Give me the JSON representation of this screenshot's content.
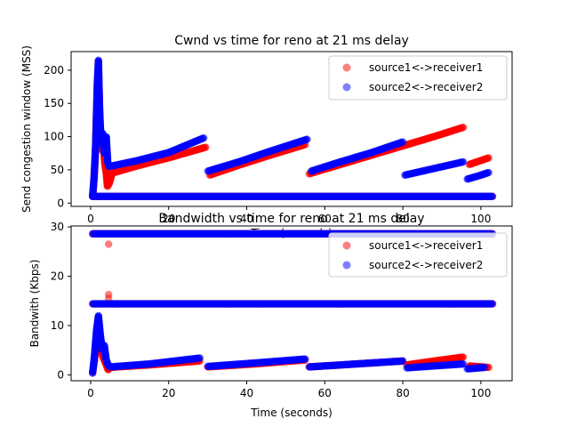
{
  "figure": {
    "series_colors": {
      "source1": "#ff0000",
      "source2": "#0000ff"
    }
  },
  "chart_data": [
    {
      "type": "scatter",
      "title": "Cwnd vs time for reno at 21 ms delay",
      "xlabel": "Time (seconds)",
      "ylabel": "Send congestion window (MSS)",
      "xlim": [
        -5,
        108
      ],
      "ylim": [
        -5,
        228
      ],
      "xticks": [
        0,
        20,
        40,
        60,
        80,
        100
      ],
      "yticks": [
        0,
        50,
        100,
        150,
        200
      ],
      "legend_location": "upper right",
      "series": [
        {
          "name": "source1<->receiver1",
          "color": "#ff0000",
          "segments": [
            [
              [
                0.5,
                10
              ],
              [
                0.8,
                30
              ],
              [
                1.2,
                70
              ],
              [
                1.6,
                150
              ],
              [
                2.0,
                205
              ],
              [
                2.4,
                120
              ],
              [
                2.8,
                80
              ],
              [
                3.2,
                95
              ],
              [
                3.6,
                60
              ],
              [
                4.0,
                45
              ],
              [
                4.3,
                25
              ],
              [
                4.8,
                30
              ],
              [
                5.5,
                45
              ]
            ],
            [
              [
                5.5,
                45
              ],
              [
                12,
                56
              ],
              [
                20,
                68
              ],
              [
                29.5,
                84
              ]
            ],
            [
              [
                30.5,
                42
              ],
              [
                38,
                57
              ],
              [
                46,
                72
              ],
              [
                55,
                88
              ]
            ],
            [
              [
                56,
                44
              ],
              [
                64,
                58
              ],
              [
                72,
                72
              ],
              [
                80,
                86
              ],
              [
                88,
                100
              ],
              [
                95.5,
                114
              ]
            ],
            [
              [
                97,
                58
              ],
              [
                100,
                64
              ],
              [
                102,
                68
              ]
            ],
            [
              [
                0.5,
                10
              ],
              [
                103,
                10
              ]
            ]
          ]
        },
        {
          "name": "source2<->receiver2",
          "color": "#0000ff",
          "segments": [
            [
              [
                0.5,
                10
              ],
              [
                0.9,
                40
              ],
              [
                1.3,
                90
              ],
              [
                1.7,
                180
              ],
              [
                2.0,
                215
              ],
              [
                2.3,
                140
              ],
              [
                2.7,
                90
              ],
              [
                3.1,
                105
              ],
              [
                3.5,
                75
              ],
              [
                4.0,
                100
              ],
              [
                4.4,
                60
              ],
              [
                4.8,
                55
              ]
            ],
            [
              [
                4.8,
                55
              ],
              [
                12,
                64
              ],
              [
                20,
                76
              ],
              [
                29,
                98
              ]
            ],
            [
              [
                30,
                48
              ],
              [
                38,
                62
              ],
              [
                46,
                78
              ],
              [
                55.5,
                96
              ]
            ],
            [
              [
                56.5,
                48
              ],
              [
                64,
                62
              ],
              [
                72,
                76
              ],
              [
                80,
                92
              ]
            ],
            [
              [
                80.5,
                42
              ],
              [
                88,
                52
              ],
              [
                95.5,
                62
              ]
            ],
            [
              [
                96.5,
                36
              ],
              [
                100,
                42
              ],
              [
                102,
                46
              ]
            ],
            [
              [
                0.5,
                10
              ],
              [
                103,
                10
              ]
            ]
          ]
        }
      ]
    },
    {
      "type": "scatter",
      "title": "Bandwidth vs time for reno at 21 ms delay",
      "xlabel": "Time (seconds)",
      "ylabel": "Bandwith (Kbps)",
      "xlim": [
        -5,
        108
      ],
      "ylim": [
        -1.2,
        30.2
      ],
      "xticks": [
        0,
        20,
        40,
        60,
        80,
        100
      ],
      "yticks": [
        0,
        10,
        20,
        30
      ],
      "legend_location": "upper right",
      "series": [
        {
          "name": "source1<->receiver1",
          "color": "#ff0000",
          "segments": [
            [
              [
                0.5,
                0.5
              ],
              [
                1.0,
                3
              ],
              [
                1.5,
                8
              ],
              [
                2.0,
                11
              ],
              [
                2.5,
                6
              ],
              [
                3.0,
                4
              ],
              [
                3.5,
                3
              ],
              [
                4.0,
                2
              ],
              [
                4.5,
                1
              ],
              [
                5.0,
                1.5
              ]
            ],
            [
              [
                5.0,
                1.5
              ],
              [
                15,
                2.0
              ],
              [
                28,
                2.8
              ]
            ],
            [
              [
                30,
                1.6
              ],
              [
                42,
                2.2
              ],
              [
                55,
                3.0
              ]
            ],
            [
              [
                56,
                1.6
              ],
              [
                68,
                2.2
              ],
              [
                80,
                2.8
              ]
            ],
            [
              [
                81,
                2.0
              ],
              [
                88,
                2.8
              ],
              [
                95.5,
                3.6
              ]
            ],
            [
              [
                97,
                1.8
              ],
              [
                102,
                1.5
              ]
            ],
            [
              [
                0.5,
                14.4
              ],
              [
                103,
                14.4
              ]
            ],
            [
              [
                0.5,
                28.6
              ],
              [
                103,
                28.6
              ]
            ]
          ],
          "outliers": [
            [
              4.6,
              26.5
            ],
            [
              4.6,
              16.3
            ],
            [
              4.6,
              15.5
            ]
          ]
        },
        {
          "name": "source2<->receiver2",
          "color": "#0000ff",
          "segments": [
            [
              [
                0.5,
                0.3
              ],
              [
                1.0,
                4
              ],
              [
                1.5,
                9
              ],
              [
                2.0,
                12
              ],
              [
                2.5,
                8
              ],
              [
                3.0,
                5
              ],
              [
                3.5,
                6
              ],
              [
                4.0,
                3
              ],
              [
                4.5,
                2
              ],
              [
                5.0,
                1.6
              ]
            ],
            [
              [
                5.0,
                1.6
              ],
              [
                15,
                2.2
              ],
              [
                28,
                3.4
              ]
            ],
            [
              [
                30,
                1.7
              ],
              [
                42,
                2.4
              ],
              [
                55,
                3.2
              ]
            ],
            [
              [
                56,
                1.6
              ],
              [
                68,
                2.2
              ],
              [
                80,
                2.8
              ]
            ],
            [
              [
                81,
                1.4
              ],
              [
                88,
                1.8
              ],
              [
                95.5,
                2.2
              ]
            ],
            [
              [
                96.5,
                1.2
              ],
              [
                101,
                1.5
              ]
            ],
            [
              [
                0.5,
                14.4
              ],
              [
                103,
                14.4
              ]
            ],
            [
              [
                0.5,
                28.6
              ],
              [
                103,
                28.6
              ]
            ]
          ],
          "outliers": []
        }
      ]
    }
  ]
}
